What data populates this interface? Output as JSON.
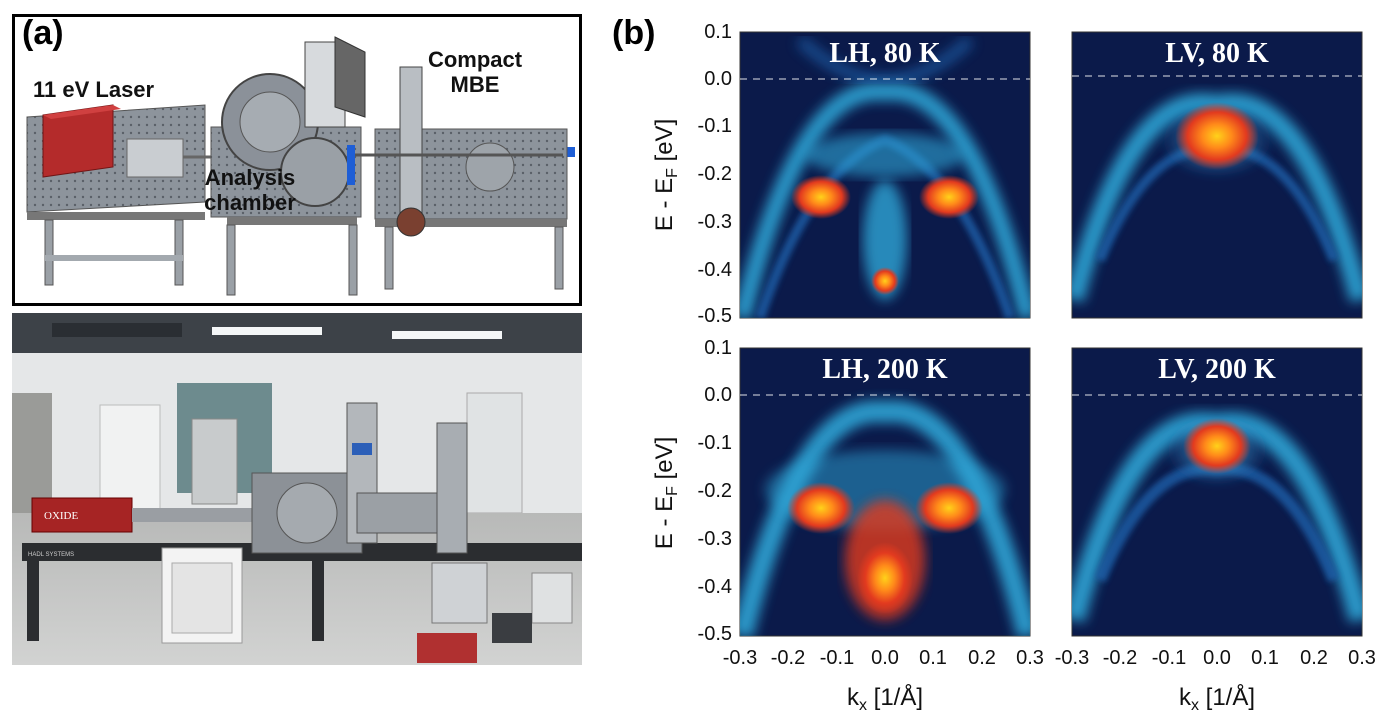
{
  "panel_a": {
    "label": "(a)",
    "schematic_labels": {
      "laser": "11 eV Laser",
      "analysis_line1": "Analysis",
      "analysis_line2": "chamber",
      "mbe_line1": "Compact",
      "mbe_line2": "MBE"
    },
    "photo_labels": {
      "oxide": "OXIDE",
      "vendor": "HADL SYSTEMS"
    }
  },
  "panel_b": {
    "label": "(b)",
    "y_axis_label": "E - E",
    "y_axis_subscript": "F",
    "y_axis_unit": " [eV]",
    "x_axis_label": "k",
    "x_axis_subscript": "x",
    "x_axis_unit": " [1/Å]",
    "y_ticks": [
      "0.1",
      "0.0",
      "-0.1",
      "-0.2",
      "-0.3",
      "-0.4",
      "-0.5"
    ],
    "x_ticks": [
      "-0.3",
      "-0.2",
      "-0.1",
      "0.0",
      "0.1",
      "0.2",
      "0.3"
    ],
    "plots": [
      {
        "title": "LH, 80 K",
        "polarization": "LH",
        "temperature_K": 80
      },
      {
        "title": "LV, 80 K",
        "polarization": "LV",
        "temperature_K": 80
      },
      {
        "title": "LH, 200 K",
        "polarization": "LH",
        "temperature_K": 200
      },
      {
        "title": "LV, 200 K",
        "polarization": "LV",
        "temperature_K": 200
      }
    ]
  },
  "chart_data": {
    "type": "heatmap",
    "xlabel": "kx [1/Å]",
    "ylabel": "E - EF [eV]",
    "xlim": [
      -0.3,
      0.3
    ],
    "ylim": [
      -0.5,
      0.1
    ],
    "fermi_level_line_eV": 0.0,
    "colormap_colors": [
      "#0b1a4a",
      "#1a5fa8",
      "#2ea5d6",
      "#5fd0ee",
      "#e23a1f",
      "#ff8a1a",
      "#ffd21a"
    ],
    "panels": [
      {
        "title": "LH, 80 K",
        "intensity_maxima": [
          {
            "kx": -0.12,
            "E": -0.25
          },
          {
            "kx": 0.12,
            "E": -0.25
          },
          {
            "kx": 0.0,
            "E": -0.42
          }
        ]
      },
      {
        "title": "LV, 80 K",
        "intensity_maxima": [
          {
            "kx": 0.0,
            "E": -0.13
          }
        ]
      },
      {
        "title": "LH, 200 K",
        "intensity_maxima": [
          {
            "kx": -0.12,
            "E": -0.24
          },
          {
            "kx": 0.12,
            "E": -0.24
          },
          {
            "kx": 0.0,
            "E": -0.35
          }
        ]
      },
      {
        "title": "LV, 200 K",
        "intensity_maxima": [
          {
            "kx": 0.0,
            "E": -0.11
          }
        ]
      }
    ]
  }
}
